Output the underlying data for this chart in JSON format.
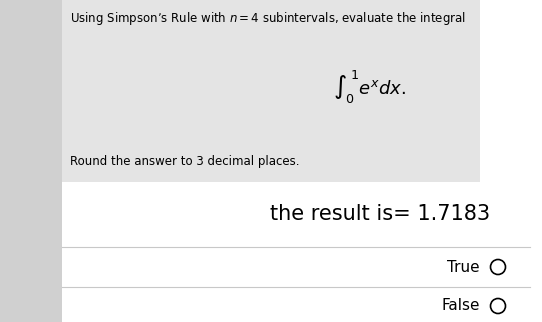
{
  "bg_color": "#ffffff",
  "gray_box_color": "#e4e4e4",
  "title_text": "Using Simpson’s Rule with $n = 4$ subintervals, evaluate the integral",
  "integral_text": "$\\int_0^{\\,1} e^x dx.$",
  "round_text": "Round the answer to 3 decimal places.",
  "result_text": "the result is= 1.7183",
  "true_text": "True",
  "false_text": "False",
  "title_fontsize": 8.5,
  "integral_fontsize": 13,
  "round_fontsize": 8.5,
  "result_fontsize": 15,
  "option_fontsize": 11,
  "text_color": "#000000",
  "line_color": "#c8c8c8",
  "fig_w": 5.42,
  "fig_h": 3.22,
  "dpi": 100
}
